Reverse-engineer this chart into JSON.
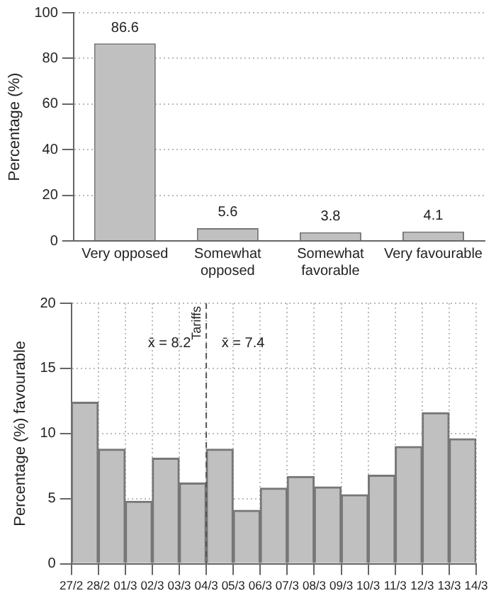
{
  "chart_data": [
    {
      "type": "bar",
      "categories": [
        "Very opposed",
        "Somewhat opposed",
        "Somewhat favorable",
        "Very favourable"
      ],
      "values": [
        86.6,
        5.6,
        3.8,
        4.1
      ],
      "color": "#c0c0c0",
      "ylabel": "Percentage (%)",
      "ylim": [
        0,
        100
      ],
      "yticks": [
        0,
        20,
        40,
        60,
        80,
        100
      ],
      "grid": "y",
      "data_labels": true
    },
    {
      "type": "bar",
      "x": [
        "--02-27T12:00",
        "--02-28T12:00",
        "--03-01T12:00",
        "--03-02T12:00",
        "--03-03T12:00",
        "--03-04T12:00",
        "--03-05T12:00",
        "--03-06T12:00",
        "--03-07T12:00",
        "--03-08T12:00",
        "--03-09T12:00",
        "--03-10T12:00",
        "--03-11T12:00",
        "--03-12T12:00",
        "--03-13T12:00"
      ],
      "values": [
        12.4,
        8.8,
        4.8,
        8.1,
        6.2,
        8.8,
        4.1,
        5.8,
        6.7,
        5.9,
        5.3,
        6.8,
        9.0,
        11.6,
        9.6
      ],
      "color": "#c0c0c0",
      "ylabel": "Percentage (%) favourable",
      "ylim": [
        0,
        20
      ],
      "yticks": [
        0,
        5,
        10,
        15,
        20
      ],
      "xlim": [
        "--02-27",
        "--03-14"
      ],
      "xticks": [
        {
          "value": "--02-27",
          "label": "27/2"
        },
        {
          "value": "--02-28",
          "label": "28/2"
        },
        {
          "value": "--03-01",
          "label": "01/3"
        },
        {
          "value": "--03-02",
          "label": "02/3"
        },
        {
          "value": "--03-03",
          "label": "03/3"
        },
        {
          "value": "--03-04",
          "label": "04/3"
        },
        {
          "value": "--03-05",
          "label": "05/3"
        },
        {
          "value": "--03-06",
          "label": "06/3"
        },
        {
          "value": "--03-07",
          "label": "07/3"
        },
        {
          "value": "--03-08",
          "label": "08/3"
        },
        {
          "value": "--03-09",
          "label": "09/3"
        },
        {
          "value": "--03-10",
          "label": "10/3"
        },
        {
          "value": "--03-11",
          "label": "11/3"
        },
        {
          "value": "--03-12",
          "label": "12/3"
        },
        {
          "value": "--03-13",
          "label": "13/3"
        },
        {
          "value": "--03-14",
          "label": "14/3"
        }
      ],
      "grid": true,
      "ref_lines": [
        {
          "axis": "x",
          "value": "--03-04",
          "label": "Tariffs",
          "line_style": "dashed"
        }
      ],
      "annotations": [
        "x̄ = 8.2",
        "x̄ = 7.4"
      ]
    }
  ]
}
